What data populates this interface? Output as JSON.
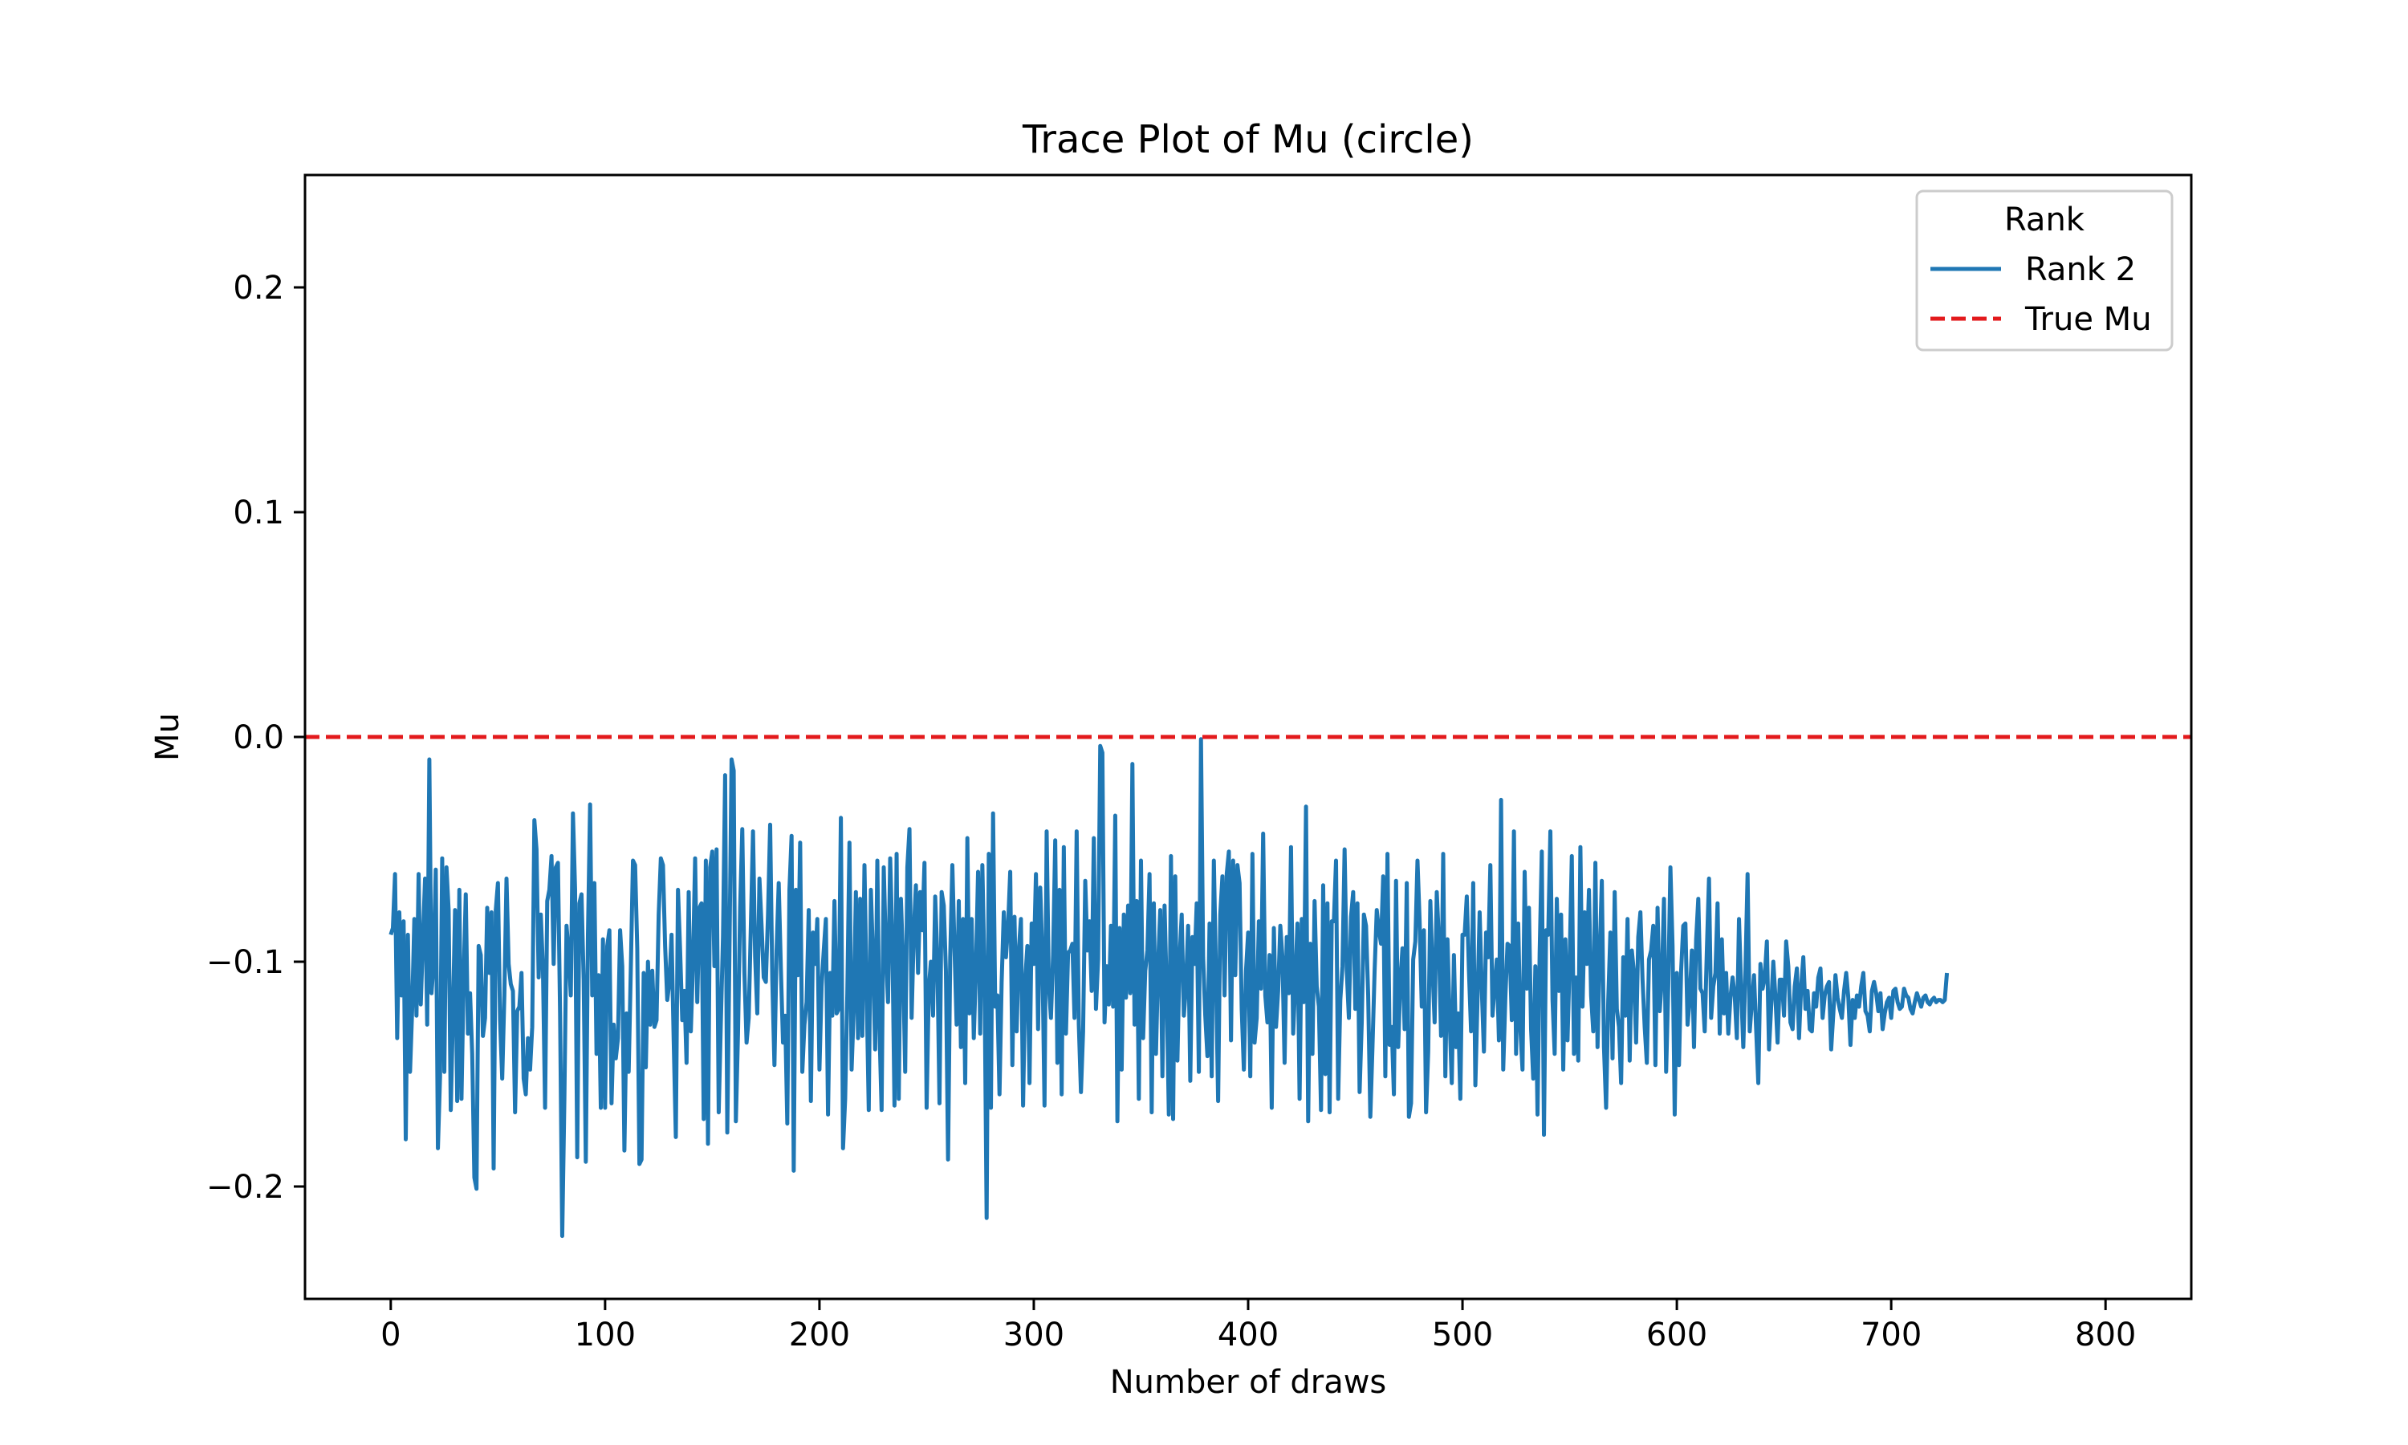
{
  "chart_data": {
    "type": "line",
    "title": "Trace Plot of Mu (circle)",
    "xlabel": "Number of draws",
    "ylabel": "Mu",
    "xlim": [
      -40,
      840
    ],
    "ylim": [
      -0.25,
      0.25
    ],
    "x_ticks": [
      0,
      100,
      200,
      300,
      400,
      500,
      600,
      700,
      800
    ],
    "x_tick_labels": [
      "0",
      "100",
      "200",
      "300",
      "400",
      "500",
      "600",
      "700",
      "800"
    ],
    "y_ticks": [
      0.2,
      0.1,
      0.0,
      -0.1,
      -0.2
    ],
    "y_tick_labels": [
      "0.2",
      "0.1",
      "0.0",
      "−0.1",
      "−0.2"
    ],
    "grid": false,
    "legend": {
      "title": "Rank",
      "placement": "top-right",
      "entries": [
        "Rank 2",
        "True Mu"
      ]
    },
    "series": [
      {
        "name": "Rank 2",
        "color": "#1f77b4",
        "style": "solid",
        "x_start": 0,
        "x_step": 1,
        "values": [
          -0.088,
          -0.085,
          -0.061,
          -0.134,
          -0.078,
          -0.115,
          -0.082,
          -0.179,
          -0.088,
          -0.149,
          -0.121,
          -0.081,
          -0.124,
          -0.061,
          -0.119,
          -0.09,
          -0.063,
          -0.128,
          -0.01,
          -0.114,
          -0.101,
          -0.059,
          -0.183,
          -0.151,
          -0.054,
          -0.149,
          -0.058,
          -0.077,
          -0.166,
          -0.124,
          -0.077,
          -0.162,
          -0.068,
          -0.161,
          -0.107,
          -0.07,
          -0.132,
          -0.114,
          -0.141,
          -0.196,
          -0.201,
          -0.093,
          -0.097,
          -0.133,
          -0.125,
          -0.076,
          -0.105,
          -0.078,
          -0.192,
          -0.077,
          -0.065,
          -0.126,
          -0.152,
          -0.115,
          -0.063,
          -0.101,
          -0.11,
          -0.113,
          -0.167,
          -0.122,
          -0.12,
          -0.105,
          -0.152,
          -0.159,
          -0.134,
          -0.148,
          -0.129,
          -0.037,
          -0.05,
          -0.107,
          -0.079,
          -0.103,
          -0.165,
          -0.073,
          -0.068,
          -0.053,
          -0.101,
          -0.058,
          -0.056,
          -0.123,
          -0.222,
          -0.161,
          -0.084,
          -0.096,
          -0.115,
          -0.034,
          -0.068,
          -0.187,
          -0.074,
          -0.07,
          -0.108,
          -0.189,
          -0.088,
          -0.03,
          -0.115,
          -0.065,
          -0.141,
          -0.106,
          -0.165,
          -0.09,
          -0.165,
          -0.093,
          -0.086,
          -0.163,
          -0.128,
          -0.143,
          -0.134,
          -0.086,
          -0.102,
          -0.184,
          -0.123,
          -0.149,
          -0.103,
          -0.055,
          -0.057,
          -0.094,
          -0.19,
          -0.188,
          -0.105,
          -0.147,
          -0.1,
          -0.128,
          -0.104,
          -0.129,
          -0.126,
          -0.079,
          -0.054,
          -0.057,
          -0.093,
          -0.117,
          -0.109,
          -0.088,
          -0.135,
          -0.178,
          -0.068,
          -0.095,
          -0.126,
          -0.113,
          -0.145,
          -0.069,
          -0.131,
          -0.101,
          -0.054,
          -0.118,
          -0.076,
          -0.074,
          -0.17,
          -0.055,
          -0.181,
          -0.058,
          -0.051,
          -0.102,
          -0.05,
          -0.167,
          -0.127,
          -0.089,
          -0.017,
          -0.176,
          -0.097,
          -0.01,
          -0.015,
          -0.171,
          -0.132,
          -0.076,
          -0.041,
          -0.105,
          -0.136,
          -0.125,
          -0.084,
          -0.042,
          -0.098,
          -0.123,
          -0.063,
          -0.084,
          -0.107,
          -0.109,
          -0.079,
          -0.039,
          -0.108,
          -0.146,
          -0.095,
          -0.065,
          -0.103,
          -0.136,
          -0.124,
          -0.172,
          -0.068,
          -0.044,
          -0.193,
          -0.068,
          -0.106,
          -0.047,
          -0.149,
          -0.128,
          -0.118,
          -0.077,
          -0.162,
          -0.087,
          -0.101,
          -0.081,
          -0.148,
          -0.111,
          -0.095,
          -0.081,
          -0.168,
          -0.105,
          -0.124,
          -0.073,
          -0.123,
          -0.121,
          -0.036,
          -0.183,
          -0.161,
          -0.114,
          -0.047,
          -0.148,
          -0.121,
          -0.069,
          -0.134,
          -0.072,
          -0.133,
          -0.057,
          -0.112,
          -0.166,
          -0.068,
          -0.099,
          -0.139,
          -0.055,
          -0.13,
          -0.166,
          -0.058,
          -0.095,
          -0.118,
          -0.054,
          -0.089,
          -0.164,
          -0.052,
          -0.161,
          -0.072,
          -0.1,
          -0.149,
          -0.058,
          -0.041,
          -0.125,
          -0.087,
          -0.066,
          -0.105,
          -0.069,
          -0.086,
          -0.056,
          -0.165,
          -0.112,
          -0.1,
          -0.124,
          -0.071,
          -0.098,
          -0.163,
          -0.069,
          -0.075,
          -0.104,
          -0.188,
          -0.098,
          -0.057,
          -0.094,
          -0.128,
          -0.073,
          -0.138,
          -0.081,
          -0.154,
          -0.045,
          -0.123,
          -0.081,
          -0.134,
          -0.103,
          -0.06,
          -0.132,
          -0.057,
          -0.105,
          -0.214,
          -0.052,
          -0.165,
          -0.034,
          -0.12,
          -0.115,
          -0.159,
          -0.109,
          -0.078,
          -0.098,
          -0.084,
          -0.06,
          -0.146,
          -0.08,
          -0.131,
          -0.095,
          -0.081,
          -0.164,
          -0.108,
          -0.093,
          -0.154,
          -0.083,
          -0.101,
          -0.061,
          -0.13,
          -0.067,
          -0.097,
          -0.164,
          -0.042,
          -0.11,
          -0.125,
          -0.097,
          -0.046,
          -0.145,
          -0.068,
          -0.159,
          -0.049,
          -0.132,
          -0.096,
          -0.095,
          -0.092,
          -0.125,
          -0.042,
          -0.128,
          -0.158,
          -0.131,
          -0.064,
          -0.095,
          -0.082,
          -0.113,
          -0.045,
          -0.121,
          -0.099,
          -0.004,
          -0.007,
          -0.127,
          -0.102,
          -0.119,
          -0.084,
          -0.12,
          -0.035,
          -0.171,
          -0.085,
          -0.148,
          -0.079,
          -0.116,
          -0.075,
          -0.114,
          -0.012,
          -0.128,
          -0.073,
          -0.161,
          -0.055,
          -0.134,
          -0.104,
          -0.095,
          -0.061,
          -0.167,
          -0.074,
          -0.141,
          -0.101,
          -0.077,
          -0.151,
          -0.075,
          -0.113,
          -0.168,
          -0.053,
          -0.17,
          -0.062,
          -0.144,
          -0.099,
          -0.079,
          -0.124,
          -0.111,
          -0.084,
          -0.153,
          -0.089,
          -0.101,
          -0.074,
          -0.149,
          -0.001,
          -0.098,
          -0.124,
          -0.142,
          -0.083,
          -0.151,
          -0.055,
          -0.105,
          -0.162,
          -0.079,
          -0.062,
          -0.115,
          -0.061,
          -0.051,
          -0.135,
          -0.055,
          -0.106,
          -0.057,
          -0.065,
          -0.121,
          -0.148,
          -0.104,
          -0.087,
          -0.151,
          -0.052,
          -0.136,
          -0.125,
          -0.082,
          -0.112,
          -0.043,
          -0.115,
          -0.127,
          -0.097,
          -0.165,
          -0.085,
          -0.129,
          -0.113,
          -0.084,
          -0.098,
          -0.145,
          -0.089,
          -0.114,
          -0.049,
          -0.132,
          -0.109,
          -0.083,
          -0.161,
          -0.081,
          -0.118,
          -0.031,
          -0.171,
          -0.092,
          -0.141,
          -0.073,
          -0.111,
          -0.12,
          -0.166,
          -0.066,
          -0.15,
          -0.074,
          -0.167,
          -0.082,
          -0.082,
          -0.055,
          -0.161,
          -0.117,
          -0.102,
          -0.05,
          -0.104,
          -0.125,
          -0.08,
          -0.069,
          -0.121,
          -0.074,
          -0.158,
          -0.127,
          -0.079,
          -0.084,
          -0.115,
          -0.169,
          -0.138,
          -0.104,
          -0.077,
          -0.086,
          -0.092,
          -0.062,
          -0.151,
          -0.052,
          -0.137,
          -0.129,
          -0.159,
          -0.064,
          -0.138,
          -0.109,
          -0.094,
          -0.13,
          -0.065,
          -0.169,
          -0.163,
          -0.099,
          -0.091,
          -0.055,
          -0.082,
          -0.12,
          -0.086,
          -0.167,
          -0.14,
          -0.073,
          -0.103,
          -0.127,
          -0.069,
          -0.091,
          -0.133,
          -0.052,
          -0.151,
          -0.09,
          -0.125,
          -0.154,
          -0.097,
          -0.138,
          -0.123,
          -0.161,
          -0.088,
          -0.088,
          -0.071,
          -0.104,
          -0.131,
          -0.065,
          -0.155,
          -0.117,
          -0.078,
          -0.112,
          -0.14,
          -0.087,
          -0.098,
          -0.057,
          -0.124,
          -0.111,
          -0.099,
          -0.135,
          -0.028,
          -0.148,
          -0.116,
          -0.092,
          -0.093,
          -0.126,
          -0.042,
          -0.141,
          -0.083,
          -0.13,
          -0.148,
          -0.06,
          -0.112,
          -0.076,
          -0.13,
          -0.152,
          -0.102,
          -0.168,
          -0.096,
          -0.051,
          -0.177,
          -0.086,
          -0.088,
          -0.042,
          -0.117,
          -0.141,
          -0.072,
          -0.113,
          -0.079,
          -0.148,
          -0.09,
          -0.135,
          -0.099,
          -0.053,
          -0.141,
          -0.107,
          -0.144,
          -0.049,
          -0.12,
          -0.078,
          -0.101,
          -0.068,
          -0.115,
          -0.131,
          -0.056,
          -0.138,
          -0.097,
          -0.064,
          -0.138,
          -0.165,
          -0.117,
          -0.087,
          -0.143,
          -0.069,
          -0.121,
          -0.129,
          -0.154,
          -0.098,
          -0.124,
          -0.081,
          -0.144,
          -0.095,
          -0.105,
          -0.136,
          -0.089,
          -0.078,
          -0.108,
          -0.129,
          -0.145,
          -0.099,
          -0.095,
          -0.084,
          -0.146,
          -0.076,
          -0.122,
          -0.108,
          -0.072,
          -0.149,
          -0.111,
          -0.058,
          -0.093,
          -0.168,
          -0.105,
          -0.146,
          -0.104,
          -0.084,
          -0.083,
          -0.128,
          -0.117,
          -0.095,
          -0.138,
          -0.09,
          -0.072,
          -0.112,
          -0.114,
          -0.131,
          -0.095,
          -0.063,
          -0.125,
          -0.111,
          -0.105,
          -0.074,
          -0.132,
          -0.09,
          -0.123,
          -0.105,
          -0.132,
          -0.116,
          -0.107,
          -0.115,
          -0.134,
          -0.081,
          -0.112,
          -0.138,
          -0.104,
          -0.061,
          -0.131,
          -0.118,
          -0.106,
          -0.13,
          -0.154,
          -0.101,
          -0.112,
          -0.107,
          -0.091,
          -0.139,
          -0.12,
          -0.1,
          -0.116,
          -0.136,
          -0.108,
          -0.108,
          -0.124,
          -0.091,
          -0.102,
          -0.127,
          -0.13,
          -0.111,
          -0.103,
          -0.134,
          -0.111,
          -0.098,
          -0.121,
          -0.113,
          -0.13,
          -0.131,
          -0.114,
          -0.12,
          -0.107,
          -0.103,
          -0.125,
          -0.115,
          -0.111,
          -0.109,
          -0.139,
          -0.123,
          -0.106,
          -0.116,
          -0.121,
          -0.125,
          -0.113,
          -0.105,
          -0.116,
          -0.137,
          -0.117,
          -0.125,
          -0.115,
          -0.12,
          -0.111,
          -0.105,
          -0.122,
          -0.124,
          -0.131,
          -0.113,
          -0.109,
          -0.114,
          -0.122,
          -0.114,
          -0.13,
          -0.123,
          -0.118,
          -0.116,
          -0.125,
          -0.113,
          -0.112,
          -0.118,
          -0.121,
          -0.12,
          -0.112,
          -0.115,
          -0.116,
          -0.121,
          -0.123,
          -0.118,
          -0.114,
          -0.117,
          -0.12,
          -0.116,
          -0.115,
          -0.118,
          -0.119,
          -0.117,
          -0.116,
          -0.118,
          -0.117,
          -0.117,
          -0.118,
          -0.117,
          -0.105
        ]
      },
      {
        "name": "True Mu",
        "color": "#e31a1c",
        "style": "dashed",
        "value": 0.0
      }
    ]
  }
}
